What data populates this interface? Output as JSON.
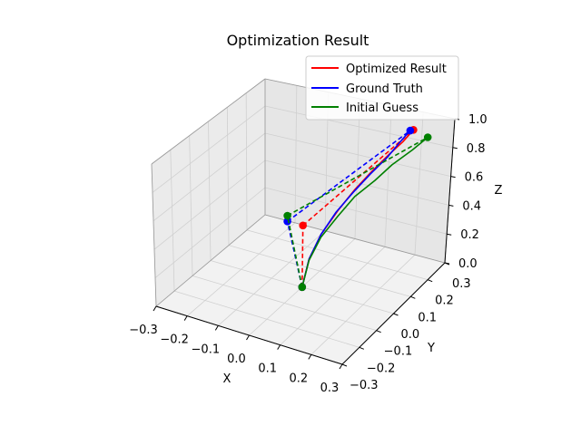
{
  "chart_data": {
    "type": "line3d",
    "title": "Optimization Result",
    "xlabel": "X",
    "ylabel": "Y",
    "zlabel": "Z",
    "xlim": [
      -0.3,
      0.3
    ],
    "ylim": [
      -0.3,
      0.3
    ],
    "zlim": [
      0.0,
      1.0
    ],
    "xticks": [
      "−0.3",
      "−0.2",
      "−0.1",
      "0.0",
      "0.1",
      "0.2",
      "0.3"
    ],
    "yticks": [
      "−0.3",
      "−0.2",
      "−0.1",
      "0.0",
      "0.1",
      "0.2",
      "0.3"
    ],
    "zticks": [
      "0.0",
      "0.2",
      "0.4",
      "0.6",
      "0.8",
      "1.0"
    ],
    "grid": true,
    "legend_position": "upper-right",
    "series": [
      {
        "name": "Optimized Result",
        "color": "#ff0000",
        "curve": [
          [
            0.0,
            0.0,
            0.0
          ],
          [
            0.01,
            0.02,
            0.18
          ],
          [
            0.03,
            0.05,
            0.33
          ],
          [
            0.06,
            0.09,
            0.47
          ],
          [
            0.09,
            0.13,
            0.59
          ],
          [
            0.12,
            0.17,
            0.69
          ],
          [
            0.15,
            0.21,
            0.78
          ],
          [
            0.18,
            0.23,
            0.86
          ],
          [
            0.2,
            0.25,
            0.93
          ]
        ],
        "dashed": [
          [
            [
              0.0,
              0.0,
              0.0
            ],
            [
              0.0,
              0.0,
              0.43
            ]
          ],
          [
            [
              0.0,
              0.0,
              0.43
            ],
            [
              0.2,
              0.25,
              0.93
            ]
          ]
        ],
        "markers": [
          [
            0.0,
            0.0,
            0.0
          ],
          [
            0.0,
            0.0,
            0.43
          ],
          [
            0.2,
            0.25,
            0.93
          ]
        ]
      },
      {
        "name": "Ground Truth",
        "color": "#0000ff",
        "curve": [
          [
            0.0,
            0.0,
            0.0
          ],
          [
            0.01,
            0.02,
            0.18
          ],
          [
            0.03,
            0.05,
            0.33
          ],
          [
            0.06,
            0.08,
            0.47
          ],
          [
            0.09,
            0.12,
            0.58
          ],
          [
            0.12,
            0.16,
            0.68
          ],
          [
            0.15,
            0.2,
            0.77
          ],
          [
            0.17,
            0.23,
            0.85
          ],
          [
            0.19,
            0.25,
            0.92
          ]
        ],
        "dashed": [
          [
            [
              0.0,
              0.0,
              0.0
            ],
            [
              -0.05,
              0.0,
              0.43
            ]
          ],
          [
            [
              -0.05,
              0.0,
              0.43
            ],
            [
              0.19,
              0.25,
              0.92
            ]
          ]
        ],
        "markers": [
          [
            0.0,
            0.0,
            0.0
          ],
          [
            -0.05,
            0.0,
            0.43
          ],
          [
            0.19,
            0.25,
            0.92
          ]
        ]
      },
      {
        "name": "Initial Guess",
        "color": "#008000",
        "curve": [
          [
            0.0,
            0.0,
            0.0
          ],
          [
            0.01,
            0.02,
            0.17
          ],
          [
            0.03,
            0.05,
            0.31
          ],
          [
            0.06,
            0.09,
            0.43
          ],
          [
            0.09,
            0.13,
            0.54
          ],
          [
            0.13,
            0.17,
            0.63
          ],
          [
            0.16,
            0.21,
            0.71
          ],
          [
            0.2,
            0.25,
            0.79
          ],
          [
            0.23,
            0.28,
            0.86
          ]
        ],
        "dashed": [
          [
            [
              0.0,
              0.0,
              0.0
            ],
            [
              -0.05,
              0.0,
              0.47
            ]
          ],
          [
            [
              -0.05,
              0.0,
              0.47
            ],
            [
              0.23,
              0.28,
              0.86
            ]
          ]
        ],
        "markers": [
          [
            0.0,
            0.0,
            0.0
          ],
          [
            -0.05,
            0.0,
            0.47
          ],
          [
            0.23,
            0.28,
            0.86
          ]
        ]
      }
    ]
  }
}
